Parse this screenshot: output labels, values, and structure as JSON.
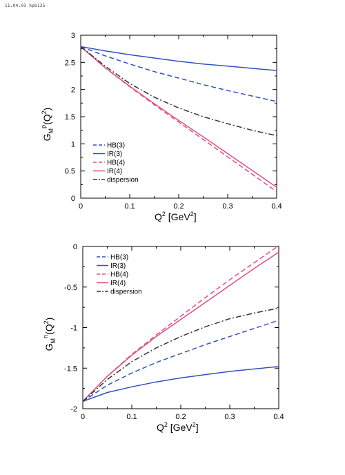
{
  "header": {
    "stamp": "11.04.03 hpb125"
  },
  "chart_data": [
    {
      "type": "line",
      "title": "",
      "ylabel": "G_M^p(Q^2)",
      "xlabel": "Q^2 [GeV^2]",
      "xlim": [
        0,
        0.4
      ],
      "ylim": [
        0,
        3
      ],
      "xticks": [
        "0",
        "0.1",
        "0.2",
        "0.3",
        "0.4"
      ],
      "yticks": [
        "0",
        "0.5",
        "1",
        "1.5",
        "2",
        "2.5",
        "3"
      ],
      "grid": false,
      "legend": "bottom-left",
      "series": [
        {
          "name": "HB(3)",
          "color": "#3050c0",
          "dash": "dashed",
          "x": [
            0,
            0.05,
            0.1,
            0.15,
            0.2,
            0.25,
            0.3,
            0.35,
            0.4
          ],
          "y": [
            2.79,
            2.62,
            2.47,
            2.33,
            2.21,
            2.09,
            1.98,
            1.88,
            1.78
          ]
        },
        {
          "name": "IR(3)",
          "color": "#3050c0",
          "dash": "solid",
          "x": [
            0,
            0.05,
            0.1,
            0.15,
            0.2,
            0.25,
            0.3,
            0.35,
            0.4
          ],
          "y": [
            2.79,
            2.71,
            2.64,
            2.58,
            2.52,
            2.47,
            2.43,
            2.39,
            2.35
          ]
        },
        {
          "name": "HB(4)",
          "color": "#e05080",
          "dash": "dashed",
          "x": [
            0,
            0.05,
            0.1,
            0.15,
            0.2,
            0.25,
            0.3,
            0.35,
            0.4
          ],
          "y": [
            2.79,
            2.4,
            2.05,
            1.72,
            1.4,
            1.08,
            0.76,
            0.44,
            0.12
          ]
        },
        {
          "name": "IR(4)",
          "color": "#e05080",
          "dash": "solid",
          "x": [
            0,
            0.05,
            0.1,
            0.15,
            0.2,
            0.25,
            0.3,
            0.35,
            0.4
          ],
          "y": [
            2.79,
            2.4,
            2.06,
            1.74,
            1.43,
            1.13,
            0.82,
            0.51,
            0.2
          ]
        },
        {
          "name": "dispersion",
          "color": "#333333",
          "dash": "dashdot",
          "x": [
            0,
            0.05,
            0.1,
            0.15,
            0.2,
            0.25,
            0.3,
            0.35,
            0.4
          ],
          "y": [
            2.79,
            2.43,
            2.11,
            1.86,
            1.66,
            1.5,
            1.37,
            1.25,
            1.15
          ]
        }
      ]
    },
    {
      "type": "line",
      "title": "",
      "ylabel": "G_M^n(Q^2)",
      "xlabel": "Q^2 [GeV^2]",
      "xlim": [
        0,
        0.4
      ],
      "ylim": [
        -2,
        0
      ],
      "xticks": [
        "0",
        "0.1",
        "0.2",
        "0.3",
        "0.4"
      ],
      "yticks": [
        "-2",
        "-1.5",
        "-1",
        "-0.5",
        "0"
      ],
      "grid": false,
      "legend": "top-left",
      "series": [
        {
          "name": "HB(3)",
          "color": "#3050c0",
          "dash": "dashed",
          "x": [
            0,
            0.05,
            0.1,
            0.15,
            0.2,
            0.25,
            0.3,
            0.35,
            0.4
          ],
          "y": [
            -1.91,
            -1.71,
            -1.56,
            -1.43,
            -1.32,
            -1.21,
            -1.11,
            -1.01,
            -0.91
          ]
        },
        {
          "name": "IR(3)",
          "color": "#3050c0",
          "dash": "solid",
          "x": [
            0,
            0.05,
            0.1,
            0.15,
            0.2,
            0.25,
            0.3,
            0.35,
            0.4
          ],
          "y": [
            -1.91,
            -1.8,
            -1.73,
            -1.67,
            -1.62,
            -1.58,
            -1.54,
            -1.51,
            -1.48
          ]
        },
        {
          "name": "HB(4)",
          "color": "#e05080",
          "dash": "dashed",
          "x": [
            0,
            0.05,
            0.1,
            0.15,
            0.2,
            0.25,
            0.3,
            0.35,
            0.4
          ],
          "y": [
            -1.91,
            -1.6,
            -1.33,
            -1.09,
            -0.86,
            -0.63,
            -0.41,
            -0.2,
            0.01
          ]
        },
        {
          "name": "IR(4)",
          "color": "#e05080",
          "dash": "solid",
          "x": [
            0,
            0.05,
            0.1,
            0.15,
            0.2,
            0.25,
            0.3,
            0.35,
            0.4
          ],
          "y": [
            -1.91,
            -1.6,
            -1.34,
            -1.11,
            -0.9,
            -0.69,
            -0.48,
            -0.27,
            -0.07
          ]
        },
        {
          "name": "dispersion",
          "color": "#333333",
          "dash": "dashdot",
          "x": [
            0,
            0.05,
            0.1,
            0.15,
            0.2,
            0.25,
            0.3,
            0.35,
            0.4
          ],
          "y": [
            -1.91,
            -1.64,
            -1.42,
            -1.25,
            -1.11,
            -0.99,
            -0.89,
            -0.82,
            -0.76
          ]
        }
      ]
    }
  ]
}
